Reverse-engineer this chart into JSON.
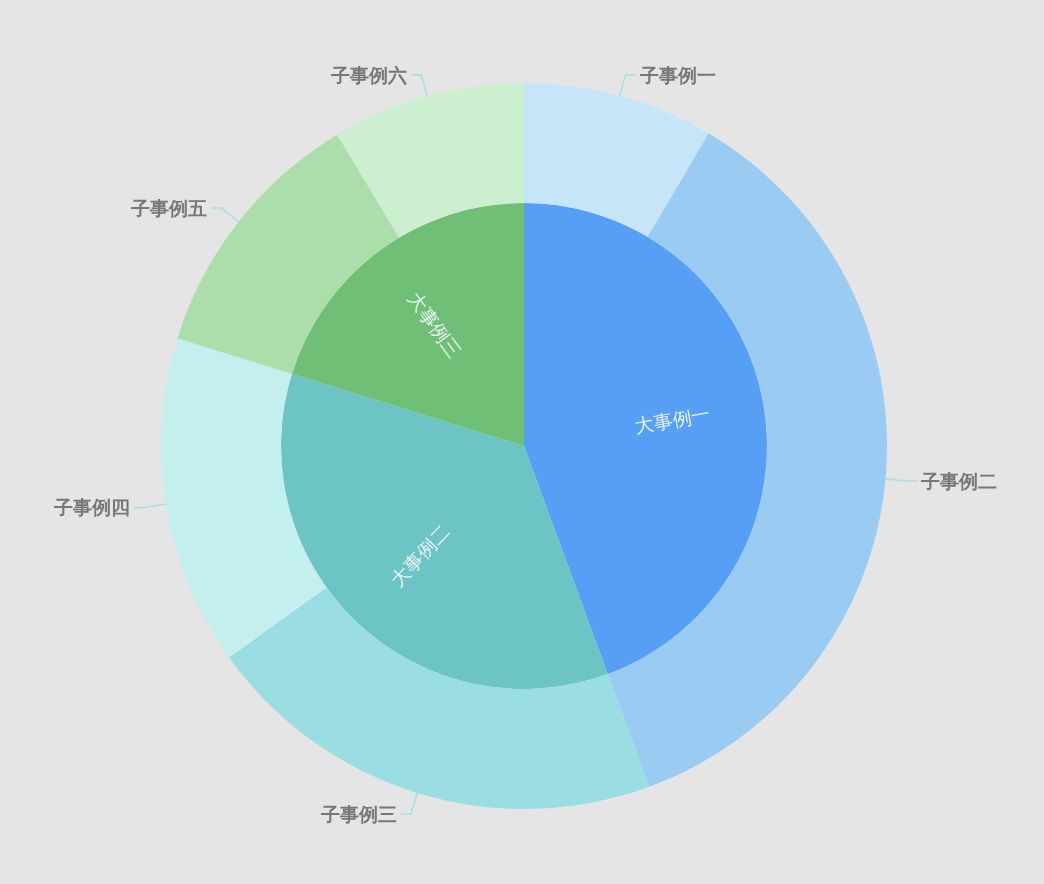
{
  "chart_data": [
    {
      "type": "pie",
      "categories": [
        "大事例一",
        "大事例二",
        "大事例三"
      ],
      "values": [
        44.4,
        35.4,
        20.2
      ],
      "colors": [
        "#579ef5",
        "#6cc4c5",
        "#70bf76"
      ]
    },
    {
      "type": "donut",
      "categories": [
        "子事例一",
        "子事例二",
        "子事例三",
        "子事例四",
        "子事例五",
        "子事例六"
      ],
      "values": [
        8.5,
        35.9,
        20.7,
        14.7,
        11.6,
        8.6
      ],
      "colors": [
        "#c7e5f8",
        "#9acbf3",
        "#9adee3",
        "#c3efef",
        "#acdeac",
        "#cbefcf"
      ]
    }
  ]
}
